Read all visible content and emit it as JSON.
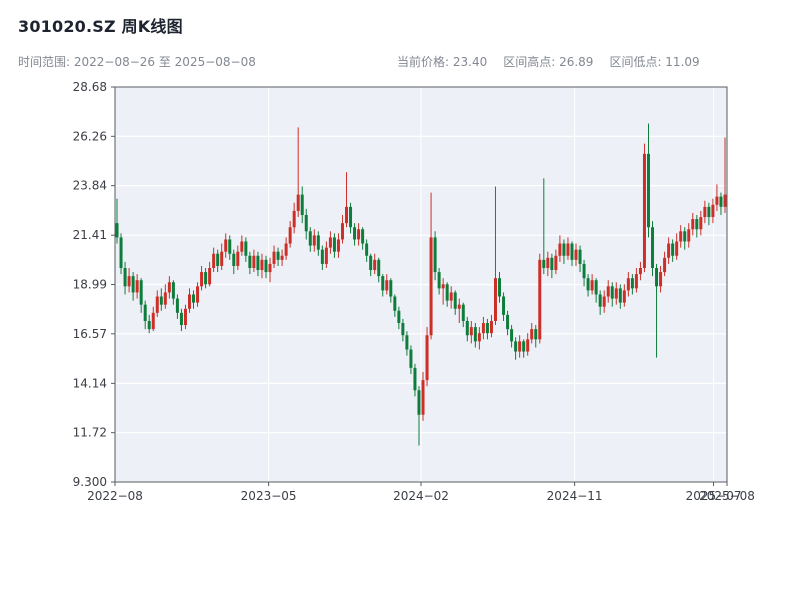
{
  "header": {
    "title": "301020.SZ 周K线图",
    "subtitle_left": "时间范围: 2022−08−26 至 2025−08−08",
    "stats": {
      "price_label": "当前价格: 23.40",
      "high_label": "区间高点: 26.89",
      "low_label": "区间低点: 11.09"
    }
  },
  "chart_data": {
    "type": "candlestick",
    "title": "301020.SZ 周K线图",
    "symbol": "301020.SZ",
    "interval": "weekly",
    "date_start": "2022-08-26",
    "date_end": "2025-08-08",
    "current_price": 23.4,
    "range_high": 26.89,
    "range_low": 11.09,
    "ylim": [
      9.3,
      28.68
    ],
    "y_ticks": [
      "28.68",
      "26.26",
      "23.84",
      "21.41",
      "18.99",
      "16.57",
      "14.14",
      "11.72",
      "9.300"
    ],
    "y_tick_values": [
      28.68,
      26.26,
      23.84,
      21.41,
      18.99,
      16.57,
      14.14,
      11.72,
      9.3
    ],
    "x_ticks": [
      {
        "label": "2022−08",
        "pos": 0.0
      },
      {
        "label": "2023−05",
        "pos": 0.251
      },
      {
        "label": "2024−02",
        "pos": 0.5
      },
      {
        "label": "2024−11",
        "pos": 0.751
      },
      {
        "label": "2025−07",
        "pos": 0.978
      },
      {
        "label": "2025−08",
        "pos": 1.0
      }
    ],
    "grid": true,
    "legend": false,
    "colors": {
      "up": "#cc2f28",
      "down": "#0e7d3c",
      "plot_bg": "#edf1f7",
      "grid": "#ffffff",
      "spine": "#555a62",
      "tick_text": "#3a3e46"
    },
    "candles": [
      [
        22.0,
        23.2,
        21.0,
        21.3
      ],
      [
        21.3,
        21.5,
        19.5,
        19.8
      ],
      [
        19.8,
        20.1,
        18.5,
        18.9
      ],
      [
        18.9,
        19.8,
        18.6,
        19.4
      ],
      [
        19.4,
        19.6,
        18.2,
        18.6
      ],
      [
        18.6,
        19.5,
        18.3,
        19.2
      ],
      [
        19.2,
        19.3,
        17.6,
        18.0
      ],
      [
        18.0,
        18.2,
        16.8,
        17.2
      ],
      [
        17.2,
        17.5,
        16.6,
        16.8
      ],
      [
        16.8,
        17.9,
        16.7,
        17.6
      ],
      [
        17.6,
        18.7,
        17.4,
        18.4
      ],
      [
        18.4,
        18.8,
        17.7,
        18.0
      ],
      [
        18.0,
        19.0,
        17.8,
        18.6
      ],
      [
        18.6,
        19.4,
        18.3,
        19.1
      ],
      [
        19.1,
        19.2,
        18.0,
        18.3
      ],
      [
        18.3,
        18.5,
        17.3,
        17.6
      ],
      [
        17.6,
        17.8,
        16.7,
        17.0
      ],
      [
        17.0,
        18.0,
        16.8,
        17.8
      ],
      [
        17.8,
        18.8,
        17.6,
        18.5
      ],
      [
        18.5,
        18.7,
        17.8,
        18.1
      ],
      [
        18.1,
        19.1,
        17.9,
        18.9
      ],
      [
        18.9,
        19.9,
        18.7,
        19.6
      ],
      [
        19.6,
        19.8,
        18.8,
        19.0
      ],
      [
        19.0,
        20.1,
        18.9,
        19.8
      ],
      [
        19.8,
        20.8,
        19.6,
        20.5
      ],
      [
        20.5,
        20.7,
        19.6,
        19.9
      ],
      [
        19.9,
        21.0,
        19.7,
        20.6
      ],
      [
        20.6,
        21.5,
        20.3,
        21.2
      ],
      [
        21.2,
        21.4,
        20.2,
        20.5
      ],
      [
        20.5,
        20.7,
        19.5,
        19.9
      ],
      [
        19.9,
        20.9,
        19.7,
        20.6
      ],
      [
        20.6,
        21.4,
        20.4,
        21.1
      ],
      [
        21.1,
        21.3,
        20.1,
        20.4
      ],
      [
        20.4,
        20.6,
        19.5,
        19.8
      ],
      [
        19.8,
        20.7,
        19.6,
        20.4
      ],
      [
        20.4,
        20.6,
        19.4,
        19.7
      ],
      [
        19.7,
        20.5,
        19.3,
        20.2
      ],
      [
        20.2,
        20.4,
        19.3,
        19.6
      ],
      [
        19.6,
        20.3,
        19.1,
        20.0
      ],
      [
        20.0,
        20.9,
        19.8,
        20.6
      ],
      [
        20.6,
        20.8,
        19.9,
        20.2
      ],
      [
        20.2,
        20.7,
        19.9,
        20.4
      ],
      [
        20.4,
        21.3,
        20.2,
        21.0
      ],
      [
        21.0,
        22.1,
        20.8,
        21.8
      ],
      [
        21.8,
        23.0,
        21.5,
        22.6
      ],
      [
        22.6,
        26.7,
        22.3,
        23.4
      ],
      [
        23.4,
        23.8,
        22.0,
        22.4
      ],
      [
        22.4,
        22.7,
        21.2,
        21.6
      ],
      [
        21.6,
        21.8,
        20.6,
        20.9
      ],
      [
        20.9,
        21.7,
        20.6,
        21.4
      ],
      [
        21.4,
        21.6,
        20.4,
        20.7
      ],
      [
        20.7,
        20.9,
        19.7,
        20.0
      ],
      [
        20.0,
        21.1,
        19.8,
        20.8
      ],
      [
        20.8,
        21.6,
        20.5,
        21.3
      ],
      [
        21.3,
        21.5,
        20.3,
        20.6
      ],
      [
        20.6,
        21.5,
        20.3,
        21.2
      ],
      [
        21.2,
        22.4,
        21.0,
        22.0
      ],
      [
        22.0,
        24.5,
        21.8,
        22.8
      ],
      [
        22.8,
        23.0,
        21.5,
        21.8
      ],
      [
        21.8,
        22.0,
        20.9,
        21.2
      ],
      [
        21.2,
        22.0,
        20.9,
        21.7
      ],
      [
        21.7,
        21.8,
        20.7,
        21.0
      ],
      [
        21.0,
        21.2,
        20.1,
        20.4
      ],
      [
        20.4,
        20.5,
        19.4,
        19.7
      ],
      [
        19.7,
        20.5,
        19.5,
        20.2
      ],
      [
        20.2,
        20.3,
        19.1,
        19.4
      ],
      [
        19.4,
        19.5,
        18.4,
        18.7
      ],
      [
        18.7,
        19.5,
        18.5,
        19.2
      ],
      [
        19.2,
        19.3,
        18.1,
        18.4
      ],
      [
        18.4,
        18.5,
        17.4,
        17.7
      ],
      [
        17.7,
        17.9,
        16.8,
        17.1
      ],
      [
        17.1,
        17.3,
        16.2,
        16.5
      ],
      [
        16.5,
        16.7,
        15.5,
        15.8
      ],
      [
        15.8,
        16.0,
        14.6,
        14.9
      ],
      [
        14.9,
        15.1,
        13.5,
        13.8
      ],
      [
        13.8,
        14.0,
        11.09,
        12.6
      ],
      [
        12.6,
        14.7,
        12.3,
        14.3
      ],
      [
        14.3,
        16.9,
        14.0,
        16.5
      ],
      [
        16.5,
        23.5,
        16.3,
        21.3
      ],
      [
        21.3,
        21.6,
        19.2,
        19.6
      ],
      [
        19.6,
        19.8,
        18.5,
        18.8
      ],
      [
        18.8,
        19.3,
        18.0,
        19.0
      ],
      [
        19.0,
        19.1,
        17.9,
        18.2
      ],
      [
        18.2,
        18.9,
        17.8,
        18.6
      ],
      [
        18.6,
        18.7,
        17.5,
        17.8
      ],
      [
        17.8,
        18.3,
        17.1,
        18.0
      ],
      [
        18.0,
        18.1,
        16.9,
        17.2
      ],
      [
        17.2,
        17.4,
        16.2,
        16.5
      ],
      [
        16.5,
        17.2,
        16.1,
        16.9
      ],
      [
        16.9,
        17.1,
        15.9,
        16.2
      ],
      [
        16.2,
        16.9,
        15.8,
        16.6
      ],
      [
        16.6,
        17.4,
        16.3,
        17.1
      ],
      [
        17.1,
        17.3,
        16.3,
        16.6
      ],
      [
        16.6,
        17.5,
        16.4,
        17.2
      ],
      [
        17.2,
        23.8,
        17.0,
        19.3
      ],
      [
        19.3,
        19.6,
        18.1,
        18.4
      ],
      [
        18.4,
        18.6,
        17.2,
        17.5
      ],
      [
        17.5,
        17.7,
        16.5,
        16.8
      ],
      [
        16.8,
        17.0,
        15.9,
        16.2
      ],
      [
        16.2,
        16.4,
        15.3,
        15.7
      ],
      [
        15.7,
        16.5,
        15.4,
        16.2
      ],
      [
        16.2,
        16.3,
        15.4,
        15.7
      ],
      [
        15.7,
        16.6,
        15.5,
        16.3
      ],
      [
        16.3,
        17.1,
        16.1,
        16.8
      ],
      [
        16.8,
        17.0,
        15.9,
        16.3
      ],
      [
        16.3,
        20.5,
        16.1,
        20.2
      ],
      [
        20.2,
        24.2,
        19.5,
        19.8
      ],
      [
        19.8,
        20.6,
        19.4,
        20.3
      ],
      [
        20.3,
        20.5,
        19.3,
        19.7
      ],
      [
        19.7,
        20.7,
        19.5,
        20.4
      ],
      [
        20.4,
        21.4,
        20.1,
        21.0
      ],
      [
        21.0,
        21.2,
        20.0,
        20.4
      ],
      [
        20.4,
        21.3,
        20.2,
        21.0
      ],
      [
        21.0,
        21.1,
        19.9,
        20.2
      ],
      [
        20.2,
        21.0,
        19.9,
        20.7
      ],
      [
        20.7,
        20.9,
        19.6,
        20.0
      ],
      [
        20.0,
        20.2,
        18.9,
        19.3
      ],
      [
        19.3,
        19.5,
        18.4,
        18.7
      ],
      [
        18.7,
        19.5,
        18.5,
        19.2
      ],
      [
        19.2,
        19.3,
        18.1,
        18.5
      ],
      [
        18.5,
        18.7,
        17.5,
        17.9
      ],
      [
        17.9,
        18.7,
        17.6,
        18.4
      ],
      [
        18.4,
        19.2,
        18.1,
        18.9
      ],
      [
        18.9,
        19.1,
        17.9,
        18.3
      ],
      [
        18.3,
        19.1,
        18.0,
        18.8
      ],
      [
        18.8,
        19.0,
        17.8,
        18.1
      ],
      [
        18.1,
        19.0,
        17.9,
        18.7
      ],
      [
        18.7,
        19.6,
        18.4,
        19.3
      ],
      [
        19.3,
        19.5,
        18.5,
        18.8
      ],
      [
        18.8,
        19.8,
        18.6,
        19.5
      ],
      [
        19.5,
        20.1,
        19.2,
        19.8
      ],
      [
        19.8,
        25.9,
        19.6,
        25.4
      ],
      [
        25.4,
        26.89,
        21.3,
        21.8
      ],
      [
        21.8,
        22.1,
        19.4,
        19.8
      ],
      [
        19.8,
        20.0,
        15.4,
        18.9
      ],
      [
        18.9,
        19.9,
        18.6,
        19.6
      ],
      [
        19.6,
        20.6,
        19.4,
        20.3
      ],
      [
        20.3,
        21.3,
        20.0,
        21.0
      ],
      [
        21.0,
        21.2,
        20.1,
        20.4
      ],
      [
        20.4,
        21.5,
        20.2,
        21.1
      ],
      [
        21.1,
        21.9,
        20.8,
        21.6
      ],
      [
        21.6,
        21.8,
        20.7,
        21.1
      ],
      [
        21.1,
        22.0,
        20.8,
        21.7
      ],
      [
        21.7,
        22.5,
        21.4,
        22.2
      ],
      [
        22.2,
        22.4,
        21.3,
        21.7
      ],
      [
        21.7,
        22.6,
        21.4,
        22.3
      ],
      [
        22.3,
        23.1,
        22.0,
        22.8
      ],
      [
        22.8,
        23.0,
        21.9,
        22.3
      ],
      [
        22.3,
        23.2,
        22.0,
        22.9
      ],
      [
        22.9,
        23.9,
        22.6,
        23.3
      ],
      [
        23.3,
        23.5,
        22.4,
        22.8
      ],
      [
        22.8,
        26.2,
        22.5,
        23.4
      ]
    ]
  }
}
